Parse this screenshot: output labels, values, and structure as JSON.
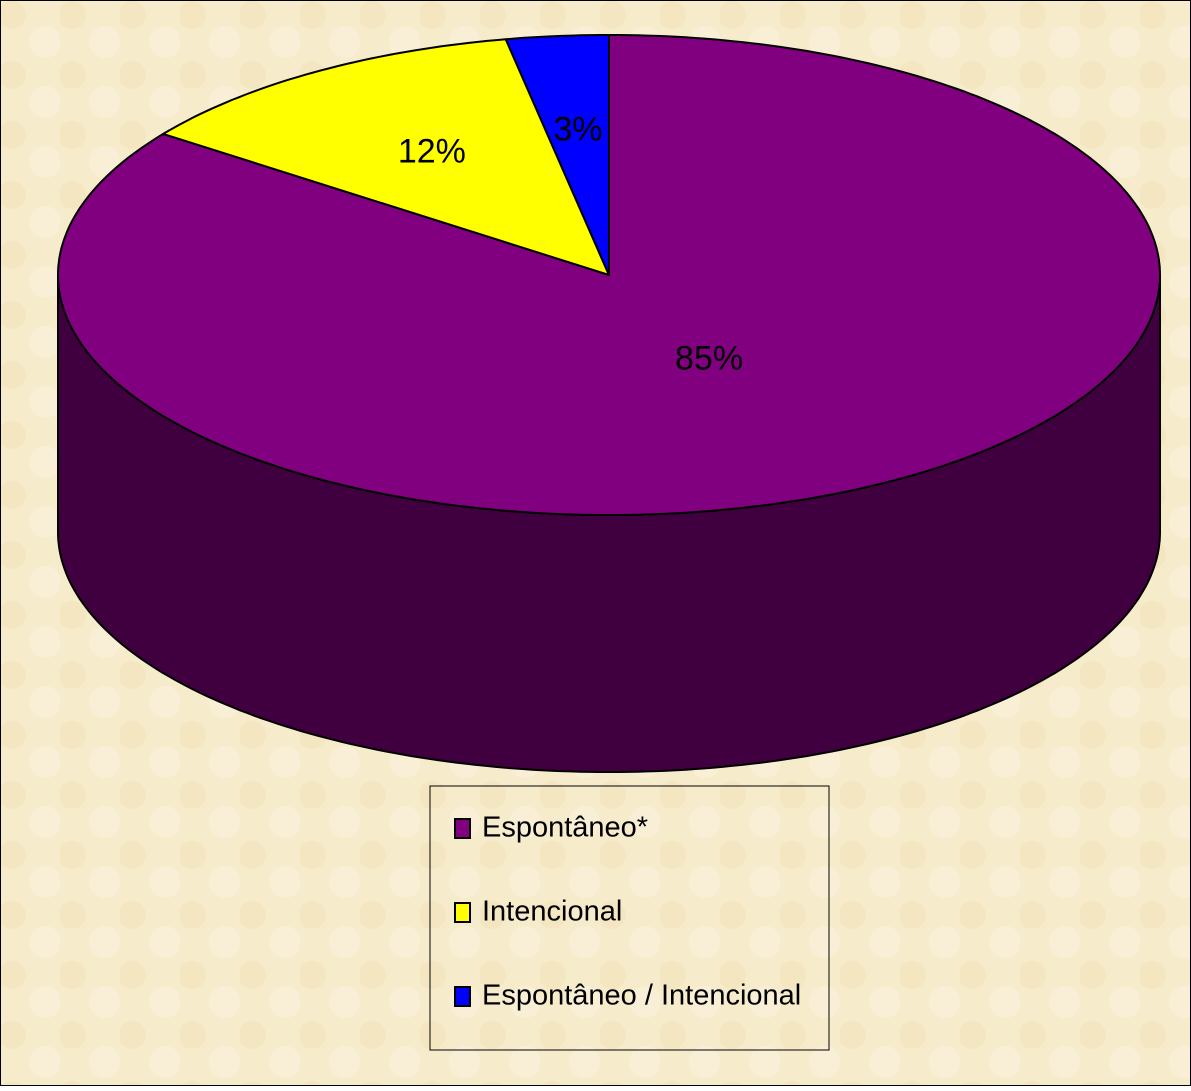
{
  "chart_data": {
    "type": "pie3d",
    "categories": [
      "Espontâneo*",
      "Intencional",
      "Espontâneo / Intencional"
    ],
    "values": [
      85,
      12,
      3
    ],
    "value_labels": [
      "85%",
      "12%",
      "3%"
    ],
    "colors": [
      "#800080",
      "#ffff00",
      "#0000ff"
    ],
    "legend": "bottom"
  }
}
